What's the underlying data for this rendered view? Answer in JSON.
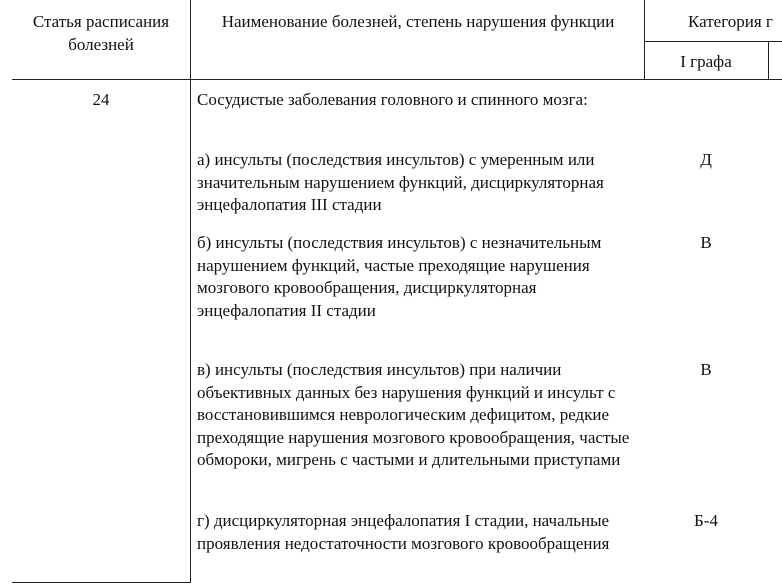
{
  "header": {
    "article": "Статья расписания болезней",
    "disease": "Наименование болезней, степень нарушения функции",
    "category": "Категория г",
    "column1": "I графа"
  },
  "article": "24",
  "intro": "Сосудистые заболевания головного и спинного мозга:",
  "items": [
    {
      "text": "а) инсульты (последствия инсультов) с умеренным или значительным нарушением функций, дисциркуляторная энцефалопатия III стадии",
      "category": "Д"
    },
    {
      "text": "б) инсульты (последствия инсультов) с незначительным нарушением функций, частые преходящие нарушения мозгового кровообращения, дисциркуляторная энцефалопатия II стадии",
      "category": "В"
    },
    {
      "text": "в) инсульты (последствия инсультов) при наличии объективных данных без нарушения функций и инсульт с восстановившимся неврологическим дефицитом, редкие преходящие нарушения мозгового кровообращения, частые обмороки, мигрень с частыми и длительными приступами",
      "category": "В"
    },
    {
      "text": "г) дисциркуляторная энцефалопатия I стадии, начальные проявления недостаточности мозгового кровообращения",
      "category": "Б-4"
    }
  ]
}
